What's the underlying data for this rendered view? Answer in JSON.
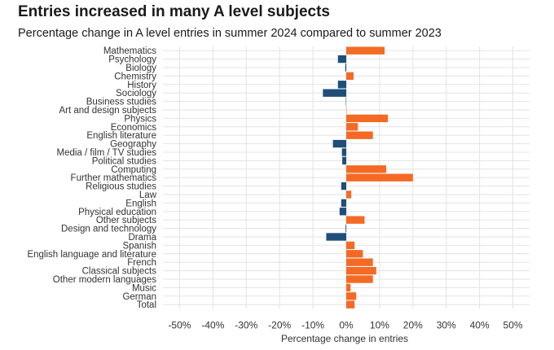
{
  "header": {
    "title": "Entries increased in many A level subjects",
    "subtitle": "Percentage change in A level entries in summer 2024 compared to summer 2023"
  },
  "chart_data": {
    "type": "bar",
    "orientation": "horizontal",
    "title": "Entries increased in many A level subjects",
    "subtitle": "Percentage change in A level entries in summer 2024 compared to summer 2023",
    "xlabel": "Percentage change in entries",
    "ylabel": "",
    "xlim": [
      -55,
      55
    ],
    "ticks": [
      -50,
      -40,
      -30,
      -20,
      -10,
      0,
      10,
      20,
      30,
      40,
      50
    ],
    "tick_labels": [
      "-50%",
      "-40%",
      "-30%",
      "-20%",
      "-10%",
      "0%",
      "10%",
      "20%",
      "30%",
      "40%",
      "50%"
    ],
    "grid": true,
    "legend": "none",
    "colors": {
      "positive": "#f46a25",
      "negative": "#1f4e79",
      "grid": "#e3e3e3"
    },
    "categories": [
      "Mathematics",
      "Psychology",
      "Biology",
      "Chemistry",
      "History",
      "Sociology",
      "Business studies",
      "Art and design subjects",
      "Physics",
      "Economics",
      "English literature",
      "Geography",
      "Media / film / TV studies",
      "Political studies",
      "Computing",
      "Further mathematics",
      "Religious studies",
      "Law",
      "English",
      "Physical education",
      "Other subjects",
      "Design and technology",
      "Drama",
      "Spanish",
      "English language and literature",
      "French",
      "Classical subjects",
      "Other modern languages",
      "Music",
      "German",
      "Total"
    ],
    "values": [
      11.5,
      -2.5,
      -0.3,
      2.2,
      -2.5,
      -7,
      -0.1,
      0.1,
      12.5,
      3.5,
      8,
      -4,
      -1.3,
      -1.2,
      12,
      20,
      -1.5,
      1.5,
      -1.5,
      -2,
      5.5,
      -0.2,
      -6,
      2.5,
      5,
      8,
      9,
      8,
      1.3,
      3,
      2.5
    ]
  }
}
